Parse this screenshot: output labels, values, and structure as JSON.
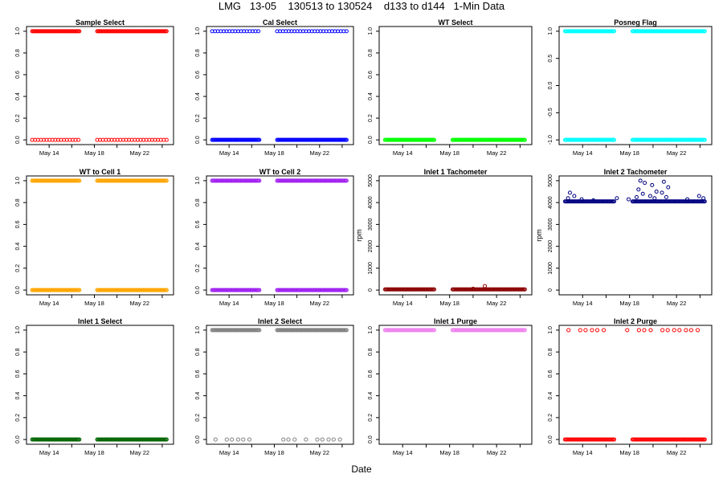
{
  "title": "LMG   13-05    130513 to 130524    d133 to d144   1-Min Data",
  "xlabel": "Date",
  "x_ticks": [
    "May 14",
    "May 18",
    "May 22"
  ],
  "chart_data": [
    {
      "type": "scatter",
      "title": "Sample Select",
      "color": "#ff0000",
      "ylabel": "",
      "ylim": [
        0,
        1
      ],
      "yticks": [
        0,
        0.2,
        0.4,
        0.6,
        0.8,
        1
      ],
      "ytick_labels": [
        "0.0",
        "0.2",
        "0.4",
        "0.6",
        "0.8",
        "1.0"
      ],
      "gap_dates": [
        "2013-05-17",
        "2013-05-18"
      ],
      "levels": [
        0,
        1
      ],
      "sparse_levels": [
        0
      ]
    },
    {
      "type": "scatter",
      "title": "Cal Select",
      "color": "#0000ff",
      "ylabel": "",
      "ylim": [
        0,
        1
      ],
      "yticks": [
        0,
        0.2,
        0.4,
        0.6,
        0.8,
        1
      ],
      "ytick_labels": [
        "0.0",
        "0.2",
        "0.4",
        "0.6",
        "0.8",
        "1.0"
      ],
      "gap_dates": [
        "2013-05-17",
        "2013-05-18"
      ],
      "levels": [
        0,
        1
      ],
      "sparse_levels": [
        1
      ]
    },
    {
      "type": "scatter",
      "title": "WT Select",
      "color": "#00ff00",
      "ylabel": "",
      "ylim": [
        0,
        1
      ],
      "yticks": [
        0,
        0.2,
        0.4,
        0.6,
        0.8,
        1
      ],
      "ytick_labels": [
        "0.0",
        "0.2",
        "0.4",
        "0.6",
        "0.8",
        "1.0"
      ],
      "gap_dates": [
        "2013-05-17",
        "2013-05-18"
      ],
      "levels": [
        0
      ],
      "sparse_levels": []
    },
    {
      "type": "scatter",
      "title": "Posneg Flag",
      "color": "#00ffff",
      "ylabel": "",
      "ylim": [
        -1,
        1
      ],
      "yticks": [
        -1,
        -0.5,
        0,
        0.5,
        1
      ],
      "ytick_labels": [
        "-1.0",
        "-0.5",
        "0.0",
        "0.5",
        "1.0"
      ],
      "gap_dates": [
        "2013-05-17",
        "2013-05-18"
      ],
      "levels": [
        -1,
        1
      ],
      "sparse_levels": []
    },
    {
      "type": "scatter",
      "title": "WT to Cell 1",
      "color": "#ffa500",
      "ylabel": "",
      "ylim": [
        0,
        1
      ],
      "yticks": [
        0,
        0.2,
        0.4,
        0.6,
        0.8,
        1
      ],
      "ytick_labels": [
        "0.0",
        "0.2",
        "0.4",
        "0.6",
        "0.8",
        "1.0"
      ],
      "gap_dates": [
        "2013-05-17",
        "2013-05-18"
      ],
      "levels": [
        0,
        1
      ],
      "sparse_levels": []
    },
    {
      "type": "scatter",
      "title": "WT to Cell 2",
      "color": "#a020f0",
      "ylabel": "",
      "ylim": [
        0,
        1
      ],
      "yticks": [
        0,
        0.2,
        0.4,
        0.6,
        0.8,
        1
      ],
      "ytick_labels": [
        "0.0",
        "0.2",
        "0.4",
        "0.6",
        "0.8",
        "1.0"
      ],
      "gap_dates": [
        "2013-05-17",
        "2013-05-18"
      ],
      "levels": [
        0,
        1
      ],
      "sparse_levels": []
    },
    {
      "type": "scatter",
      "title": "Inlet 1 Tachometer",
      "color": "#8b0000",
      "ylabel": "rpm",
      "ylim": [
        0,
        5000
      ],
      "yticks": [
        0,
        1000,
        2000,
        3000,
        4000,
        5000
      ],
      "ytick_labels": [
        "0",
        "1000",
        "2000",
        "3000",
        "4000",
        "5000"
      ],
      "gap_dates": [
        "2013-05-17",
        "2013-05-18"
      ],
      "levels": [
        30
      ],
      "sparse_levels": [],
      "extra_points": [
        {
          "x": "2013-05-21",
          "y": 180
        },
        {
          "x": "2013-05-20",
          "y": 60
        }
      ]
    },
    {
      "type": "scatter",
      "title": "Inlet 2 Tachometer",
      "color": "#000080",
      "ylabel": "rpm",
      "ylim": [
        0,
        5000
      ],
      "yticks": [
        0,
        1000,
        2000,
        3000,
        4000,
        5000
      ],
      "ytick_labels": [
        "0",
        "1000",
        "2000",
        "3000",
        "4000",
        "5000"
      ],
      "gap_dates": [
        "2013-05-17",
        "2013-05-18"
      ],
      "levels": [
        4050
      ],
      "sparse_levels": [],
      "spikes": [
        {
          "x": "2013-05-13",
          "y": 4450
        },
        {
          "x": "2013-05-13",
          "y": 4300
        },
        {
          "x": "2013-05-13",
          "y": 4200
        },
        {
          "x": "2013-05-14",
          "y": 4150
        },
        {
          "x": "2013-05-15",
          "y": 4100
        },
        {
          "x": "2013-05-17",
          "y": 4200
        },
        {
          "x": "2013-05-18",
          "y": 4150
        },
        {
          "x": "2013-05-19",
          "y": 5000
        },
        {
          "x": "2013-05-19",
          "y": 4900
        },
        {
          "x": "2013-05-19",
          "y": 4600
        },
        {
          "x": "2013-05-19",
          "y": 4400
        },
        {
          "x": "2013-05-19",
          "y": 4250
        },
        {
          "x": "2013-05-20",
          "y": 4800
        },
        {
          "x": "2013-05-20",
          "y": 4500
        },
        {
          "x": "2013-05-20",
          "y": 4300
        },
        {
          "x": "2013-05-20",
          "y": 4200
        },
        {
          "x": "2013-05-21",
          "y": 4950
        },
        {
          "x": "2013-05-21",
          "y": 4700
        },
        {
          "x": "2013-05-21",
          "y": 4450
        },
        {
          "x": "2013-05-21",
          "y": 4250
        },
        {
          "x": "2013-05-23",
          "y": 4150
        },
        {
          "x": "2013-05-24",
          "y": 4300
        },
        {
          "x": "2013-05-24",
          "y": 4200
        }
      ]
    },
    {
      "type": "scatter",
      "title": "Inlet 1 Select",
      "color": "#006400",
      "ylabel": "",
      "ylim": [
        0,
        1
      ],
      "yticks": [
        0,
        0.2,
        0.4,
        0.6,
        0.8,
        1
      ],
      "ytick_labels": [
        "0.0",
        "0.2",
        "0.4",
        "0.6",
        "0.8",
        "1.0"
      ],
      "gap_dates": [
        "2013-05-17",
        "2013-05-18"
      ],
      "levels": [
        0
      ],
      "sparse_levels": []
    },
    {
      "type": "scatter",
      "title": "Inlet 2 Select",
      "color": "#808080",
      "ylabel": "",
      "ylim": [
        0,
        1
      ],
      "yticks": [
        0,
        0.2,
        0.4,
        0.6,
        0.8,
        1
      ],
      "ytick_labels": [
        "0.0",
        "0.2",
        "0.4",
        "0.6",
        "0.8",
        "1.0"
      ],
      "gap_dates": [
        "2013-05-17",
        "2013-05-18"
      ],
      "levels": [
        1
      ],
      "sparse_levels": [],
      "sparse_points": {
        "y": 0,
        "x": [
          "2013-05-13",
          "2013-05-14",
          "2013-05-14",
          "2013-05-15",
          "2013-05-15",
          "2013-05-16",
          "2013-05-19",
          "2013-05-19",
          "2013-05-20",
          "2013-05-21",
          "2013-05-22",
          "2013-05-22",
          "2013-05-23",
          "2013-05-23",
          "2013-05-24"
        ]
      }
    },
    {
      "type": "scatter",
      "title": "Inlet 1 Purge",
      "color": "#ee82ee",
      "ylabel": "",
      "ylim": [
        0,
        1
      ],
      "yticks": [
        0,
        0.2,
        0.4,
        0.6,
        0.8,
        1
      ],
      "ytick_labels": [
        "0.0",
        "0.2",
        "0.4",
        "0.6",
        "0.8",
        "1.0"
      ],
      "gap_dates": [
        "2013-05-17",
        "2013-05-18"
      ],
      "levels": [
        1
      ],
      "sparse_levels": []
    },
    {
      "type": "scatter",
      "title": "Inlet 2 Purge",
      "color": "#ff0000",
      "ylabel": "",
      "ylim": [
        0,
        1
      ],
      "yticks": [
        0,
        0.2,
        0.4,
        0.6,
        0.8,
        1
      ],
      "ytick_labels": [
        "0.0",
        "0.2",
        "0.4",
        "0.6",
        "0.8",
        "1.0"
      ],
      "gap_dates": [
        "2013-05-17",
        "2013-05-18"
      ],
      "levels": [
        0
      ],
      "sparse_levels": [],
      "sparse_points": {
        "y": 1,
        "x": [
          "2013-05-13",
          "2013-05-14",
          "2013-05-14",
          "2013-05-15",
          "2013-05-15",
          "2013-05-16",
          "2013-05-18",
          "2013-05-19",
          "2013-05-19",
          "2013-05-20",
          "2013-05-21",
          "2013-05-21",
          "2013-05-22",
          "2013-05-22",
          "2013-05-23",
          "2013-05-23",
          "2013-05-24"
        ]
      }
    }
  ]
}
